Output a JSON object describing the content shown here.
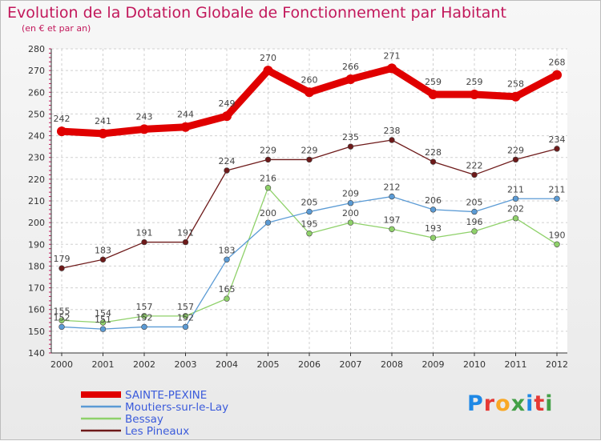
{
  "chart_data": {
    "type": "line",
    "title": "Evolution de la Dotation Globale de Fonctionnement par Habitant",
    "subtitle": "(en € et par an)",
    "categories": [
      "2000",
      "2001",
      "2002",
      "2003",
      "2004",
      "2005",
      "2006",
      "2007",
      "2008",
      "2009",
      "2010",
      "2011",
      "2012"
    ],
    "ylim": [
      140,
      280
    ],
    "yticks": [
      140,
      150,
      160,
      170,
      180,
      190,
      200,
      210,
      220,
      230,
      240,
      250,
      260,
      270,
      280
    ],
    "grid": true,
    "legend_position": "bottom-left",
    "series": [
      {
        "name": "SAINTE-PEXINE",
        "color": "#e00000",
        "values": [
          242,
          241,
          243,
          244,
          249,
          270,
          260,
          266,
          271,
          259,
          259,
          258,
          268
        ]
      },
      {
        "name": "Moutiers-sur-le-Lay",
        "color": "#5b9bd5",
        "values": [
          152,
          151,
          152,
          152,
          183,
          200,
          205,
          209,
          212,
          206,
          205,
          211,
          211
        ]
      },
      {
        "name": "Bessay",
        "color": "#8fd16a",
        "values": [
          155,
          154,
          157,
          157,
          165,
          216,
          195,
          200,
          197,
          193,
          196,
          202,
          190
        ]
      },
      {
        "name": "Les Pineaux",
        "color": "#6e1a1a",
        "values": [
          179,
          183,
          191,
          191,
          224,
          229,
          229,
          235,
          238,
          228,
          222,
          229,
          234
        ]
      }
    ]
  },
  "logo": {
    "text": "Proxiti",
    "letters": [
      "P",
      "r",
      "o",
      "x",
      "i",
      "t",
      "i"
    ],
    "colors": [
      "#1e88e5",
      "#e53935",
      "#f9a825",
      "#43a047",
      "#1e88e5",
      "#e53935",
      "#43a047"
    ]
  }
}
